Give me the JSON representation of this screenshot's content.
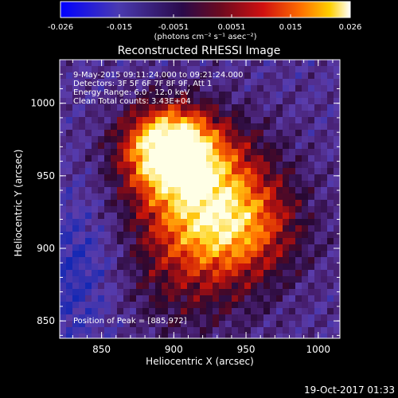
{
  "colorbar": {
    "ticks": [
      "-0.026",
      "-0.015",
      "-0.0051",
      "0.0051",
      "0.015",
      "0.026"
    ],
    "units": "(photons cm⁻² s⁻¹ asec⁻²)",
    "colors": [
      "#0000ff",
      "#5a2aa8",
      "#3a0a5a",
      "#7a0a2a",
      "#d01010",
      "#ff6a00",
      "#ffd000",
      "#ffffff"
    ]
  },
  "image": {
    "title": "Reconstructed RHESSI Image",
    "info_lines": [
      "9-May-2015 09:11:24.000 to 09:21:24.000",
      "Detectors: 3F 5F 6F 7F 8F 9F, Att 1",
      "Energy Range: 6.0 - 12.0 keV",
      "Clean    Total counts: 3.43E+04"
    ],
    "peak_label": "Position of Peak = [885,972]",
    "timestamp": "19-Oct-2017 01:33",
    "x_axis": {
      "label": "Heliocentric X (arcsec)",
      "ticks": [
        "850",
        "900",
        "950",
        "1000"
      ],
      "range": [
        821,
        1015
      ]
    },
    "y_axis": {
      "label": "Heliocentric Y (arcsec)",
      "ticks": [
        "850",
        "900",
        "950",
        "1000"
      ],
      "range": [
        838,
        1030
      ]
    }
  }
}
